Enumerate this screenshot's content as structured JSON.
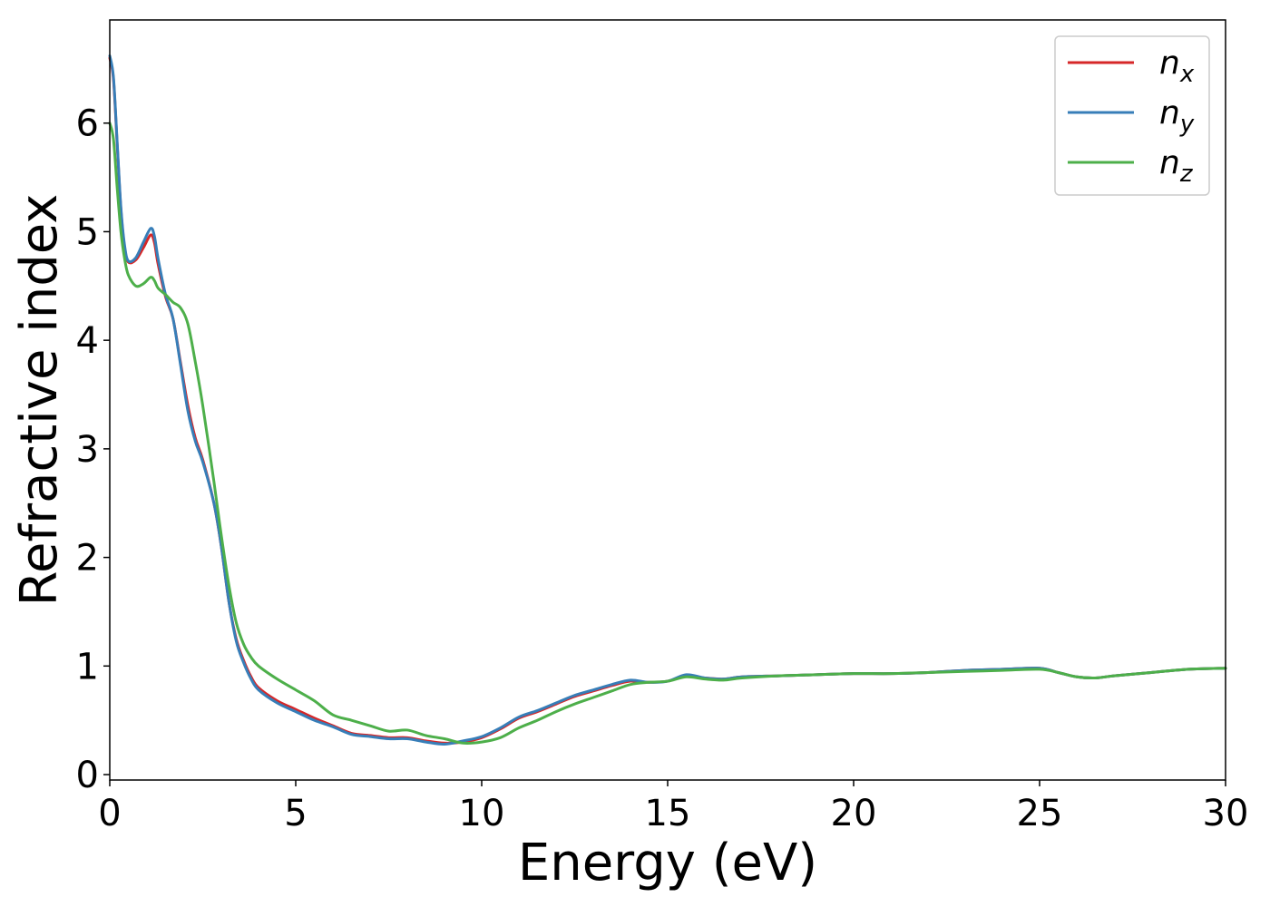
{
  "chart_data": {
    "type": "line",
    "xlabel": "Energy (eV)",
    "ylabel": "Refractive index",
    "xlim": [
      0,
      30
    ],
    "ylim": [
      -0.05,
      6.95
    ],
    "xticks": [
      "0",
      "5",
      "10",
      "15",
      "20",
      "25",
      "30"
    ],
    "yticks": [
      "0",
      "1",
      "2",
      "3",
      "4",
      "5",
      "6"
    ],
    "grid": false,
    "legend_position": "top-right",
    "series": [
      {
        "name": "n",
        "subscript": "x",
        "color": "#d62728",
        "x": [
          0,
          0.1,
          0.2,
          0.3,
          0.4,
          0.5,
          0.7,
          0.9,
          1.1,
          1.2,
          1.3,
          1.5,
          1.7,
          1.9,
          2.1,
          2.3,
          2.5,
          2.8,
          3.0,
          3.2,
          3.4,
          3.6,
          3.8,
          4.0,
          4.5,
          5.0,
          5.5,
          6.0,
          6.5,
          7.0,
          7.5,
          8.0,
          8.5,
          9.0,
          9.5,
          10.0,
          10.5,
          11.0,
          11.5,
          12.0,
          12.5,
          13.0,
          13.5,
          14.0,
          14.5,
          15.0,
          15.5,
          16.0,
          16.5,
          17.0,
          18.0,
          19.0,
          20.0,
          21.0,
          22.0,
          23.0,
          24.0,
          25.0,
          25.5,
          26.0,
          26.5,
          27.0,
          28.0,
          29.0,
          30.0
        ],
        "y": [
          6.6,
          6.4,
          5.8,
          5.2,
          4.85,
          4.72,
          4.74,
          4.85,
          4.97,
          4.9,
          4.7,
          4.4,
          4.2,
          3.8,
          3.4,
          3.1,
          2.9,
          2.5,
          2.1,
          1.6,
          1.25,
          1.05,
          0.9,
          0.8,
          0.68,
          0.6,
          0.52,
          0.45,
          0.38,
          0.36,
          0.34,
          0.34,
          0.31,
          0.29,
          0.3,
          0.34,
          0.42,
          0.52,
          0.58,
          0.65,
          0.72,
          0.77,
          0.82,
          0.86,
          0.85,
          0.86,
          0.91,
          0.89,
          0.88,
          0.9,
          0.91,
          0.92,
          0.93,
          0.93,
          0.94,
          0.96,
          0.97,
          0.98,
          0.94,
          0.9,
          0.89,
          0.91,
          0.94,
          0.97,
          0.98
        ]
      },
      {
        "name": "n",
        "subscript": "y",
        "color": "#377eb8",
        "x": [
          0,
          0.1,
          0.2,
          0.3,
          0.4,
          0.5,
          0.7,
          0.9,
          1.1,
          1.2,
          1.3,
          1.5,
          1.7,
          1.9,
          2.1,
          2.3,
          2.5,
          2.8,
          3.0,
          3.2,
          3.4,
          3.6,
          3.8,
          4.0,
          4.5,
          5.0,
          5.5,
          6.0,
          6.5,
          7.0,
          7.5,
          8.0,
          8.5,
          9.0,
          9.5,
          10.0,
          10.5,
          11.0,
          11.5,
          12.0,
          12.5,
          13.0,
          13.5,
          14.0,
          14.5,
          15.0,
          15.5,
          16.0,
          16.5,
          17.0,
          18.0,
          19.0,
          20.0,
          21.0,
          22.0,
          23.0,
          24.0,
          25.0,
          25.5,
          26.0,
          26.5,
          27.0,
          28.0,
          29.0,
          30.0
        ],
        "y": [
          6.62,
          6.42,
          5.82,
          5.22,
          4.87,
          4.73,
          4.76,
          4.9,
          5.03,
          4.96,
          4.75,
          4.42,
          4.2,
          3.78,
          3.35,
          3.07,
          2.88,
          2.5,
          2.1,
          1.6,
          1.23,
          1.03,
          0.88,
          0.78,
          0.66,
          0.58,
          0.5,
          0.44,
          0.37,
          0.35,
          0.33,
          0.33,
          0.3,
          0.28,
          0.31,
          0.35,
          0.43,
          0.53,
          0.59,
          0.66,
          0.73,
          0.78,
          0.83,
          0.87,
          0.85,
          0.86,
          0.92,
          0.89,
          0.88,
          0.9,
          0.91,
          0.92,
          0.93,
          0.93,
          0.94,
          0.96,
          0.97,
          0.98,
          0.94,
          0.9,
          0.89,
          0.91,
          0.94,
          0.97,
          0.98
        ]
      },
      {
        "name": "n",
        "subscript": "z",
        "color": "#4daf4a",
        "x": [
          0,
          0.1,
          0.2,
          0.3,
          0.4,
          0.5,
          0.7,
          0.9,
          1.1,
          1.2,
          1.3,
          1.5,
          1.7,
          1.9,
          2.1,
          2.3,
          2.5,
          2.8,
          3.0,
          3.2,
          3.4,
          3.6,
          3.8,
          4.0,
          4.5,
          5.0,
          5.5,
          6.0,
          6.5,
          7.0,
          7.5,
          8.0,
          8.5,
          9.0,
          9.5,
          10.0,
          10.5,
          11.0,
          11.5,
          12.0,
          12.5,
          13.0,
          13.5,
          14.0,
          14.5,
          15.0,
          15.5,
          16.0,
          16.5,
          17.0,
          18.0,
          19.0,
          20.0,
          21.0,
          22.0,
          23.0,
          24.0,
          25.0,
          25.5,
          26.0,
          26.5,
          27.0,
          28.0,
          29.0,
          30.0
        ],
        "y": [
          6.0,
          5.85,
          5.4,
          5.0,
          4.75,
          4.6,
          4.5,
          4.52,
          4.58,
          4.55,
          4.48,
          4.42,
          4.35,
          4.3,
          4.15,
          3.8,
          3.4,
          2.7,
          2.2,
          1.75,
          1.4,
          1.2,
          1.08,
          1.0,
          0.88,
          0.78,
          0.68,
          0.55,
          0.5,
          0.45,
          0.4,
          0.41,
          0.36,
          0.33,
          0.29,
          0.3,
          0.34,
          0.43,
          0.5,
          0.58,
          0.65,
          0.71,
          0.77,
          0.83,
          0.85,
          0.86,
          0.9,
          0.88,
          0.87,
          0.89,
          0.91,
          0.92,
          0.93,
          0.93,
          0.94,
          0.95,
          0.96,
          0.97,
          0.94,
          0.9,
          0.89,
          0.91,
          0.94,
          0.97,
          0.98
        ]
      }
    ]
  }
}
